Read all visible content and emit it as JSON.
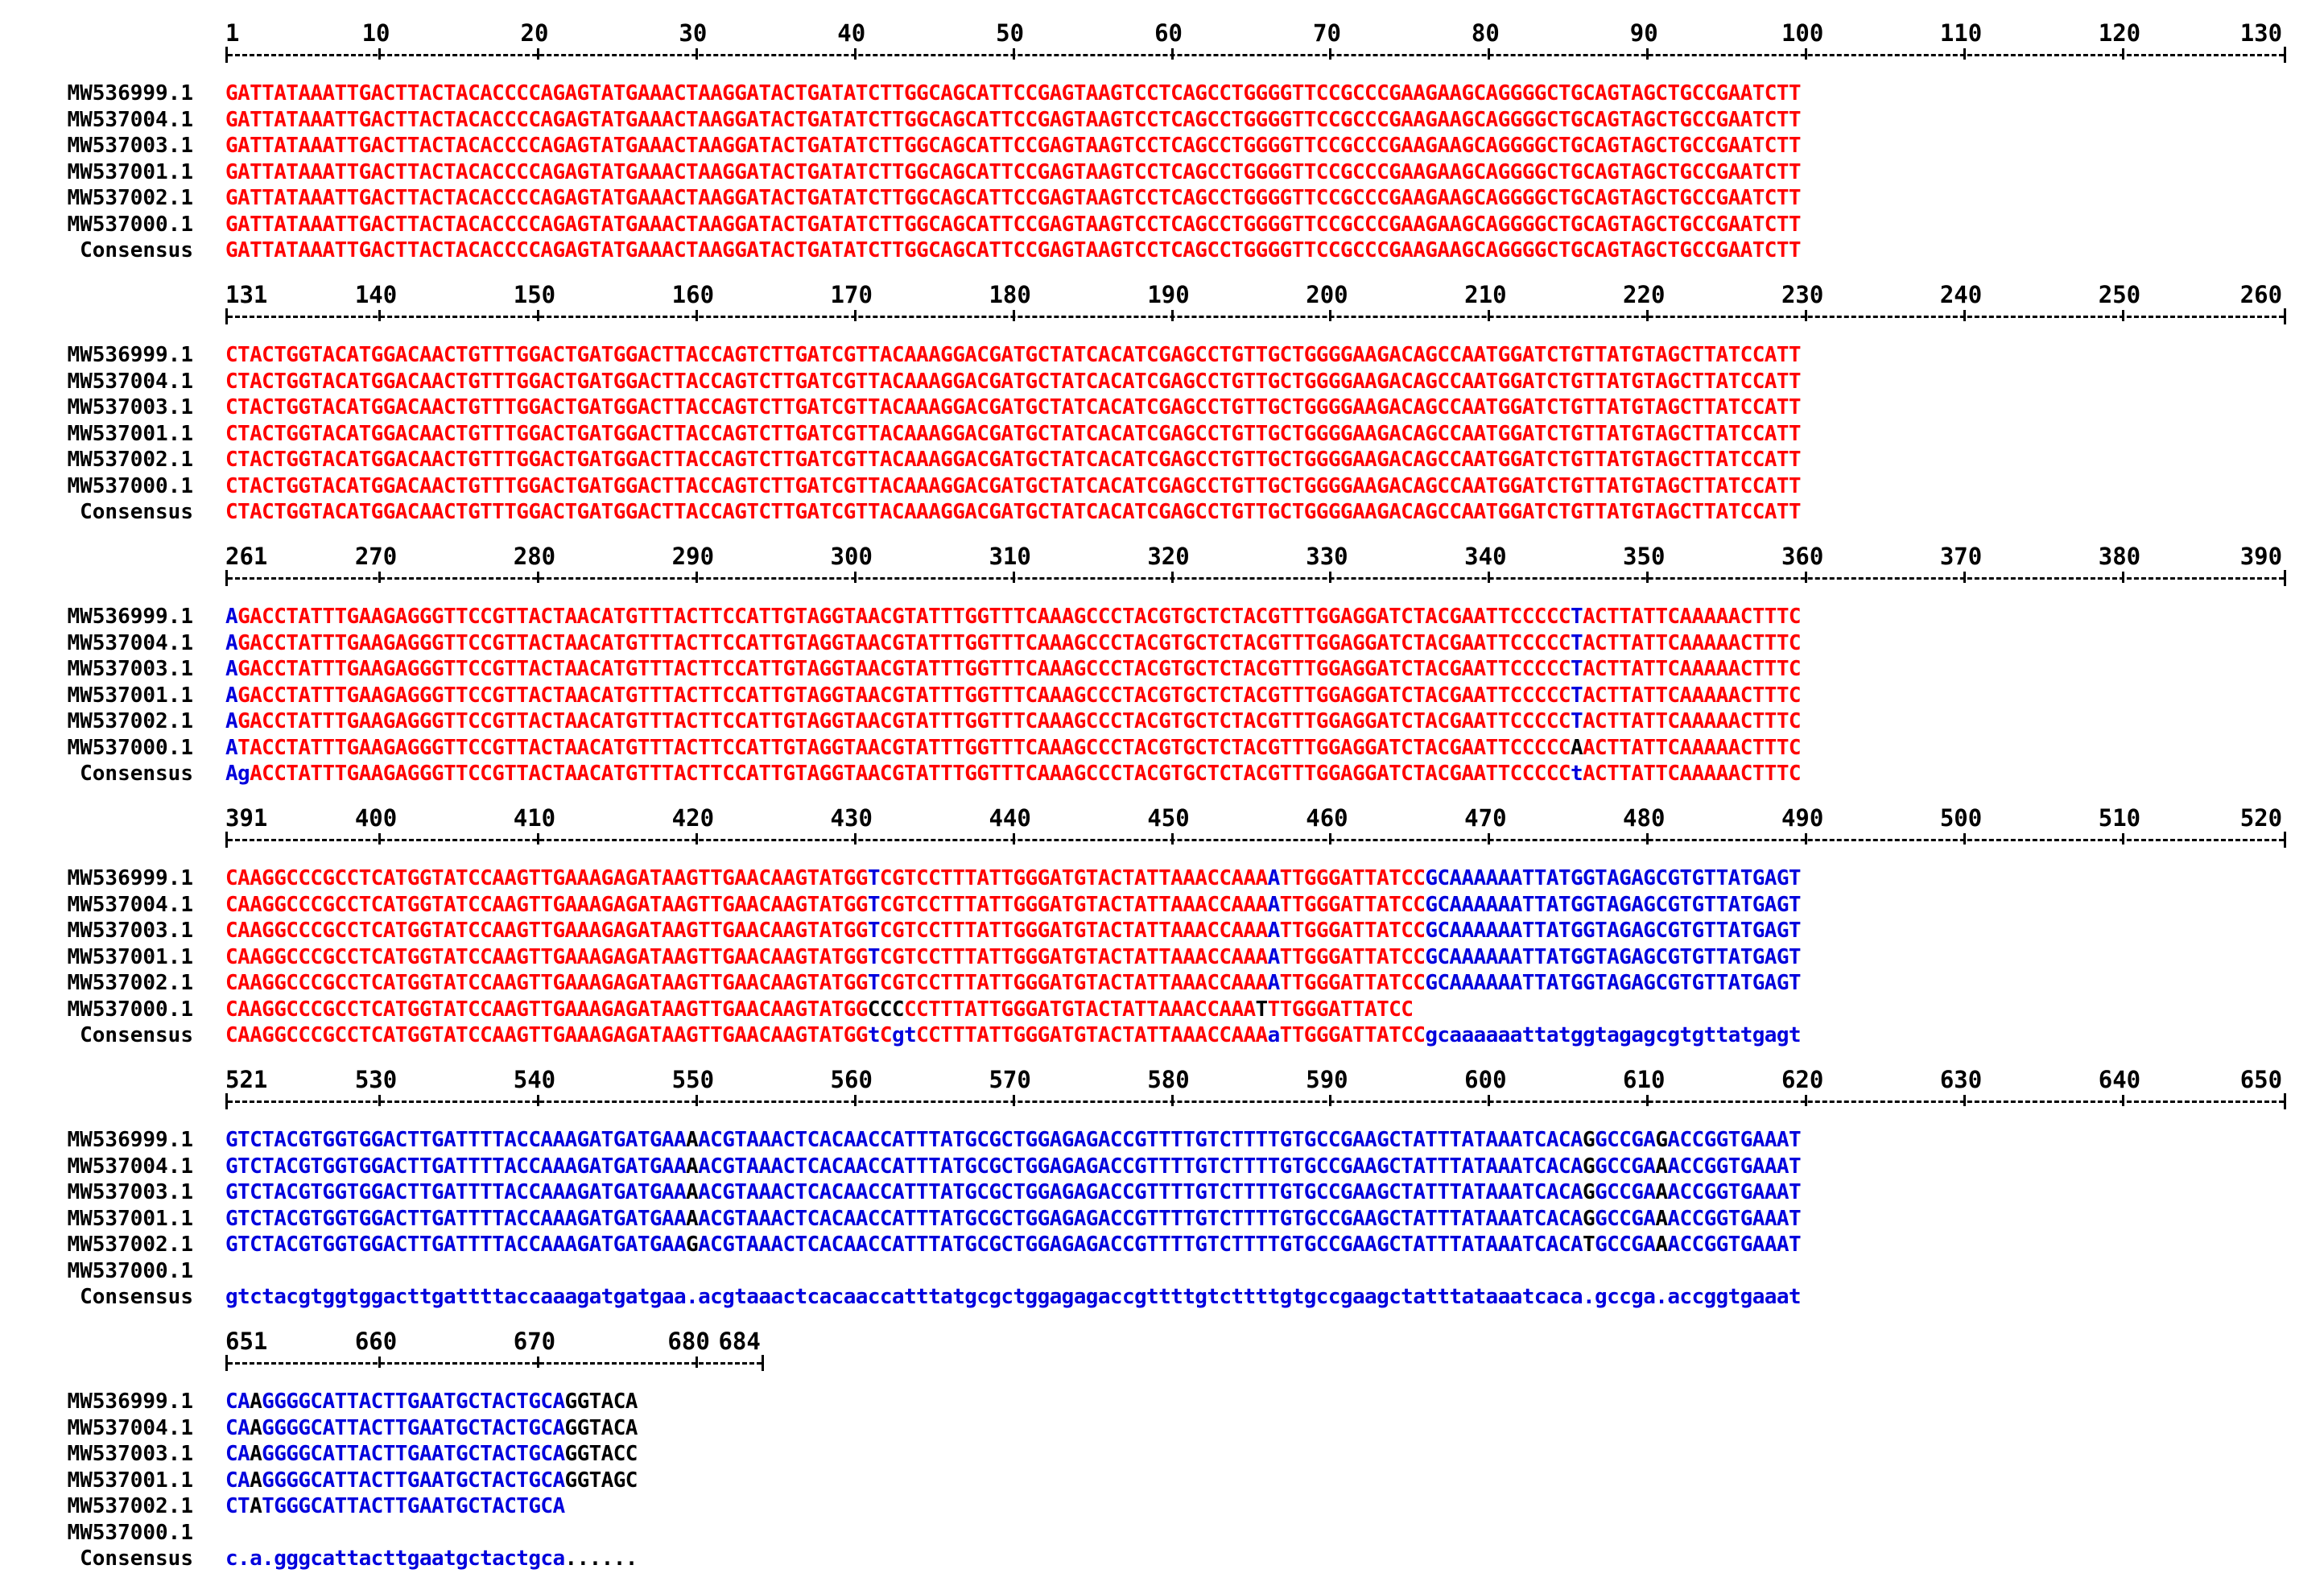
{
  "palette": {
    "high": "#ff0000",
    "low": "#0000dd",
    "neutral": "#000000"
  },
  "blocks": [
    {
      "start": 1,
      "end": 130,
      "ruler_labels": [
        "1",
        "10",
        "20",
        "30",
        "40",
        "50",
        "60",
        "70",
        "80",
        "90",
        "100",
        "110",
        "120",
        "130"
      ],
      "rows": [
        {
          "label": "MW536999.1",
          "segments": [
            [
              "r",
              "GATTATAAATTGACTTACTACACCCCAGAGTATGAAACTAAGGATACTGATATCTTGGCAGCATTCCGAGTAAGTCCTCAGCCTGGGGTTCCGCCCGAAGAAGCAGGGGCTGCAGTAGCTGCCGAATCTT"
            ]
          ]
        },
        {
          "label": "MW537004.1",
          "segments": [
            [
              "r",
              "GATTATAAATTGACTTACTACACCCCAGAGTATGAAACTAAGGATACTGATATCTTGGCAGCATTCCGAGTAAGTCCTCAGCCTGGGGTTCCGCCCGAAGAAGCAGGGGCTGCAGTAGCTGCCGAATCTT"
            ]
          ]
        },
        {
          "label": "MW537003.1",
          "segments": [
            [
              "r",
              "GATTATAAATTGACTTACTACACCCCAGAGTATGAAACTAAGGATACTGATATCTTGGCAGCATTCCGAGTAAGTCCTCAGCCTGGGGTTCCGCCCGAAGAAGCAGGGGCTGCAGTAGCTGCCGAATCTT"
            ]
          ]
        },
        {
          "label": "MW537001.1",
          "segments": [
            [
              "r",
              "GATTATAAATTGACTTACTACACCCCAGAGTATGAAACTAAGGATACTGATATCTTGGCAGCATTCCGAGTAAGTCCTCAGCCTGGGGTTCCGCCCGAAGAAGCAGGGGCTGCAGTAGCTGCCGAATCTT"
            ]
          ]
        },
        {
          "label": "MW537002.1",
          "segments": [
            [
              "r",
              "GATTATAAATTGACTTACTACACCCCAGAGTATGAAACTAAGGATACTGATATCTTGGCAGCATTCCGAGTAAGTCCTCAGCCTGGGGTTCCGCCCGAAGAAGCAGGGGCTGCAGTAGCTGCCGAATCTT"
            ]
          ]
        },
        {
          "label": "MW537000.1",
          "segments": [
            [
              "r",
              "GATTATAAATTGACTTACTACACCCCAGAGTATGAAACTAAGGATACTGATATCTTGGCAGCATTCCGAGTAAGTCCTCAGCCTGGGGTTCCGCCCGAAGAAGCAGGGGCTGCAGTAGCTGCCGAATCTT"
            ]
          ]
        },
        {
          "label": "Consensus",
          "segments": [
            [
              "r",
              "GATTATAAATTGACTTACTACACCCCAGAGTATGAAACTAAGGATACTGATATCTTGGCAGCATTCCGAGTAAGTCCTCAGCCTGGGGTTCCGCCCGAAGAAGCAGGGGCTGCAGTAGCTGCCGAATCTT"
            ]
          ]
        }
      ]
    },
    {
      "start": 131,
      "end": 260,
      "ruler_labels": [
        "131",
        "140",
        "150",
        "160",
        "170",
        "180",
        "190",
        "200",
        "210",
        "220",
        "230",
        "240",
        "250",
        "260"
      ],
      "rows": [
        {
          "label": "MW536999.1",
          "segments": [
            [
              "r",
              "CTACTGGTACATGGACAACTGTTTGGACTGATGGACTTACCAGTCTTGATCGTTACAAAGGACGATGCTATCACATCGAGCCTGTTGCTGGGGAAGACAGCCAATGGATCTGTTATGTAGCTTATCCATT"
            ]
          ]
        },
        {
          "label": "MW537004.1",
          "segments": [
            [
              "r",
              "CTACTGGTACATGGACAACTGTTTGGACTGATGGACTTACCAGTCTTGATCGTTACAAAGGACGATGCTATCACATCGAGCCTGTTGCTGGGGAAGACAGCCAATGGATCTGTTATGTAGCTTATCCATT"
            ]
          ]
        },
        {
          "label": "MW537003.1",
          "segments": [
            [
              "r",
              "CTACTGGTACATGGACAACTGTTTGGACTGATGGACTTACCAGTCTTGATCGTTACAAAGGACGATGCTATCACATCGAGCCTGTTGCTGGGGAAGACAGCCAATGGATCTGTTATGTAGCTTATCCATT"
            ]
          ]
        },
        {
          "label": "MW537001.1",
          "segments": [
            [
              "r",
              "CTACTGGTACATGGACAACTGTTTGGACTGATGGACTTACCAGTCTTGATCGTTACAAAGGACGATGCTATCACATCGAGCCTGTTGCTGGGGAAGACAGCCAATGGATCTGTTATGTAGCTTATCCATT"
            ]
          ]
        },
        {
          "label": "MW537002.1",
          "segments": [
            [
              "r",
              "CTACTGGTACATGGACAACTGTTTGGACTGATGGACTTACCAGTCTTGATCGTTACAAAGGACGATGCTATCACATCGAGCCTGTTGCTGGGGAAGACAGCCAATGGATCTGTTATGTAGCTTATCCATT"
            ]
          ]
        },
        {
          "label": "MW537000.1",
          "segments": [
            [
              "r",
              "CTACTGGTACATGGACAACTGTTTGGACTGATGGACTTACCAGTCTTGATCGTTACAAAGGACGATGCTATCACATCGAGCCTGTTGCTGGGGAAGACAGCCAATGGATCTGTTATGTAGCTTATCCATT"
            ]
          ]
        },
        {
          "label": "Consensus",
          "segments": [
            [
              "r",
              "CTACTGGTACATGGACAACTGTTTGGACTGATGGACTTACCAGTCTTGATCGTTACAAAGGACGATGCTATCACATCGAGCCTGTTGCTGGGGAAGACAGCCAATGGATCTGTTATGTAGCTTATCCATT"
            ]
          ]
        }
      ]
    },
    {
      "start": 261,
      "end": 390,
      "ruler_labels": [
        "261",
        "270",
        "280",
        "290",
        "300",
        "310",
        "320",
        "330",
        "340",
        "350",
        "360",
        "370",
        "380",
        "390"
      ],
      "rows": [
        {
          "label": "MW536999.1",
          "segments": [
            [
              "b",
              "A"
            ],
            [
              "r",
              "GACCTATTTGAAGAGGGTTCCGTTACTAACATGTTTACTTCCATTGTAGGTAACGTATTTGGTTTCAAAGCCCTACGTGCTCTACGTTTGGAGGATCTACGAATTCCCCC"
            ],
            [
              "b",
              "T"
            ],
            [
              "r",
              "ACTTATTCAAAAACTTTC"
            ]
          ]
        },
        {
          "label": "MW537004.1",
          "segments": [
            [
              "b",
              "A"
            ],
            [
              "r",
              "GACCTATTTGAAGAGGGTTCCGTTACTAACATGTTTACTTCCATTGTAGGTAACGTATTTGGTTTCAAAGCCCTACGTGCTCTACGTTTGGAGGATCTACGAATTCCCCC"
            ],
            [
              "b",
              "T"
            ],
            [
              "r",
              "ACTTATTCAAAAACTTTC"
            ]
          ]
        },
        {
          "label": "MW537003.1",
          "segments": [
            [
              "b",
              "A"
            ],
            [
              "r",
              "GACCTATTTGAAGAGGGTTCCGTTACTAACATGTTTACTTCCATTGTAGGTAACGTATTTGGTTTCAAAGCCCTACGTGCTCTACGTTTGGAGGATCTACGAATTCCCCC"
            ],
            [
              "b",
              "T"
            ],
            [
              "r",
              "ACTTATTCAAAAACTTTC"
            ]
          ]
        },
        {
          "label": "MW537001.1",
          "segments": [
            [
              "b",
              "A"
            ],
            [
              "r",
              "GACCTATTTGAAGAGGGTTCCGTTACTAACATGTTTACTTCCATTGTAGGTAACGTATTTGGTTTCAAAGCCCTACGTGCTCTACGTTTGGAGGATCTACGAATTCCCCC"
            ],
            [
              "b",
              "T"
            ],
            [
              "r",
              "ACTTATTCAAAAACTTTC"
            ]
          ]
        },
        {
          "label": "MW537002.1",
          "segments": [
            [
              "b",
              "A"
            ],
            [
              "r",
              "GACCTATTTGAAGAGGGTTCCGTTACTAACATGTTTACTTCCATTGTAGGTAACGTATTTGGTTTCAAAGCCCTACGTGCTCTACGTTTGGAGGATCTACGAATTCCCCC"
            ],
            [
              "b",
              "T"
            ],
            [
              "r",
              "ACTTATTCAAAAACTTTC"
            ]
          ]
        },
        {
          "label": "MW537000.1",
          "segments": [
            [
              "b",
              "A"
            ],
            [
              "r",
              "TACCTATTTGAAGAGGGTTCCGTTACTAACATGTTTACTTCCATTGTAGGTAACGTATTTGGTTTCAAAGCCCTACGTGCTCTACGTTTGGAGGATCTACGAATTCCCCC"
            ],
            [
              "k",
              "A"
            ],
            [
              "r",
              "ACTTATTCAAAAACTTTC"
            ]
          ]
        },
        {
          "label": "Consensus",
          "segments": [
            [
              "b",
              "Ag"
            ],
            [
              "r",
              "ACCTATTTGAAGAGGGTTCCGTTACTAACATGTTTACTTCCATTGTAGGTAACGTATTTGGTTTCAAAGCCCTACGTGCTCTACGTTTGGAGGATCTACGAATTCCCCC"
            ],
            [
              "b",
              "t"
            ],
            [
              "r",
              "ACTTATTCAAAAACTTTC"
            ]
          ]
        }
      ]
    },
    {
      "start": 391,
      "end": 520,
      "ruler_labels": [
        "391",
        "400",
        "410",
        "420",
        "430",
        "440",
        "450",
        "460",
        "470",
        "480",
        "490",
        "500",
        "510",
        "520"
      ],
      "rows": [
        {
          "label": "MW536999.1",
          "segments": [
            [
              "r",
              "CAAGGCCCGCCTCATGGTATCCAAGTTGAAAGAGATAAGTTGAACAAGTATGG"
            ],
            [
              "b",
              "T"
            ],
            [
              "r",
              "CGTCCTTTATTGGGATGTACTATTAAACCAAA"
            ],
            [
              "b",
              "A"
            ],
            [
              "r",
              "TTGGGATTATCC"
            ],
            [
              "b",
              "GCAAAAAATTATGGTAGAGCGTGTTATGAGT"
            ]
          ]
        },
        {
          "label": "MW537004.1",
          "segments": [
            [
              "r",
              "CAAGGCCCGCCTCATGGTATCCAAGTTGAAAGAGATAAGTTGAACAAGTATGG"
            ],
            [
              "b",
              "T"
            ],
            [
              "r",
              "CGTCCTTTATTGGGATGTACTATTAAACCAAA"
            ],
            [
              "b",
              "A"
            ],
            [
              "r",
              "TTGGGATTATCC"
            ],
            [
              "b",
              "GCAAAAAATTATGGTAGAGCGTGTTATGAGT"
            ]
          ]
        },
        {
          "label": "MW537003.1",
          "segments": [
            [
              "r",
              "CAAGGCCCGCCTCATGGTATCCAAGTTGAAAGAGATAAGTTGAACAAGTATGG"
            ],
            [
              "b",
              "T"
            ],
            [
              "r",
              "CGTCCTTTATTGGGATGTACTATTAAACCAAA"
            ],
            [
              "b",
              "A"
            ],
            [
              "r",
              "TTGGGATTATCC"
            ],
            [
              "b",
              "GCAAAAAATTATGGTAGAGCGTGTTATGAGT"
            ]
          ]
        },
        {
          "label": "MW537001.1",
          "segments": [
            [
              "r",
              "CAAGGCCCGCCTCATGGTATCCAAGTTGAAAGAGATAAGTTGAACAAGTATGG"
            ],
            [
              "b",
              "T"
            ],
            [
              "r",
              "CGTCCTTTATTGGGATGTACTATTAAACCAAA"
            ],
            [
              "b",
              "A"
            ],
            [
              "r",
              "TTGGGATTATCC"
            ],
            [
              "b",
              "GCAAAAAATTATGGTAGAGCGTGTTATGAGT"
            ]
          ]
        },
        {
          "label": "MW537002.1",
          "segments": [
            [
              "r",
              "CAAGGCCCGCCTCATGGTATCCAAGTTGAAAGAGATAAGTTGAACAAGTATGG"
            ],
            [
              "b",
              "T"
            ],
            [
              "r",
              "CGTCCTTTATTGGGATGTACTATTAAACCAAA"
            ],
            [
              "b",
              "A"
            ],
            [
              "r",
              "TTGGGATTATCC"
            ],
            [
              "b",
              "GCAAAAAATTATGGTAGAGCGTGTTATGAGT"
            ]
          ]
        },
        {
          "label": "MW537000.1",
          "segments": [
            [
              "r",
              "CAAGGCCCGCCTCATGGTATCCAAGTTGAAAGAGATAAGTTGAACAAGTATGG"
            ],
            [
              "k",
              "CCC"
            ],
            [
              "r",
              "CCTTTATTGGGATGTACTATTAAACCAAA"
            ],
            [
              "k",
              "T"
            ],
            [
              "r",
              "TTGGGATTATCC"
            ]
          ]
        },
        {
          "label": "Consensus",
          "segments": [
            [
              "r",
              "CAAGGCCCGCCTCATGGTATCCAAGTTGAAAGAGATAAGTTGAACAAGTATGG"
            ],
            [
              "b",
              "t"
            ],
            [
              "r",
              "C"
            ],
            [
              "b",
              "gt"
            ],
            [
              "r",
              "CCTTTATTGGGATGTACTATTAAACCAAA"
            ],
            [
              "b",
              "a"
            ],
            [
              "r",
              "TTGGGATTATCC"
            ],
            [
              "b",
              "gcaaaaaattatggtagagcgtgttatgagt"
            ]
          ]
        }
      ]
    },
    {
      "start": 521,
      "end": 650,
      "ruler_labels": [
        "521",
        "530",
        "540",
        "550",
        "560",
        "570",
        "580",
        "590",
        "600",
        "610",
        "620",
        "630",
        "640",
        "650"
      ],
      "rows": [
        {
          "label": "MW536999.1",
          "segments": [
            [
              "b",
              "GTCTACGTGGTGGACTTGATTTTACCAAAGATGATGAA"
            ],
            [
              "k",
              "A"
            ],
            [
              "b",
              "ACGTAAACTCACAACCATTTATGCGCTGGAGAGACCGTTTTGTCTTTTGTGCCGAAGCTATTTATAAATCACA"
            ],
            [
              "k",
              "G"
            ],
            [
              "b",
              "GCCGA"
            ],
            [
              "k",
              "G"
            ],
            [
              "b",
              "ACCGGTGAAAT"
            ]
          ]
        },
        {
          "label": "MW537004.1",
          "segments": [
            [
              "b",
              "GTCTACGTGGTGGACTTGATTTTACCAAAGATGATGAA"
            ],
            [
              "k",
              "A"
            ],
            [
              "b",
              "ACGTAAACTCACAACCATTTATGCGCTGGAGAGACCGTTTTGTCTTTTGTGCCGAAGCTATTTATAAATCACA"
            ],
            [
              "k",
              "G"
            ],
            [
              "b",
              "GCCGA"
            ],
            [
              "k",
              "A"
            ],
            [
              "b",
              "ACCGGTGAAAT"
            ]
          ]
        },
        {
          "label": "MW537003.1",
          "segments": [
            [
              "b",
              "GTCTACGTGGTGGACTTGATTTTACCAAAGATGATGAA"
            ],
            [
              "k",
              "A"
            ],
            [
              "b",
              "ACGTAAACTCACAACCATTTATGCGCTGGAGAGACCGTTTTGTCTTTTGTGCCGAAGCTATTTATAAATCACA"
            ],
            [
              "k",
              "G"
            ],
            [
              "b",
              "GCCGA"
            ],
            [
              "k",
              "A"
            ],
            [
              "b",
              "ACCGGTGAAAT"
            ]
          ]
        },
        {
          "label": "MW537001.1",
          "segments": [
            [
              "b",
              "GTCTACGTGGTGGACTTGATTTTACCAAAGATGATGAA"
            ],
            [
              "k",
              "A"
            ],
            [
              "b",
              "ACGTAAACTCACAACCATTTATGCGCTGGAGAGACCGTTTTGTCTTTTGTGCCGAAGCTATTTATAAATCACA"
            ],
            [
              "k",
              "G"
            ],
            [
              "b",
              "GCCGA"
            ],
            [
              "k",
              "A"
            ],
            [
              "b",
              "ACCGGTGAAAT"
            ]
          ]
        },
        {
          "label": "MW537002.1",
          "segments": [
            [
              "b",
              "GTCTACGTGGTGGACTTGATTTTACCAAAGATGATGAA"
            ],
            [
              "k",
              "G"
            ],
            [
              "b",
              "ACGTAAACTCACAACCATTTATGCGCTGGAGAGACCGTTTTGTCTTTTGTGCCGAAGCTATTTATAAATCACA"
            ],
            [
              "k",
              "T"
            ],
            [
              "b",
              "GCCGA"
            ],
            [
              "k",
              "A"
            ],
            [
              "b",
              "ACCGGTGAAAT"
            ]
          ]
        },
        {
          "label": "MW537000.1",
          "segments": []
        },
        {
          "label": "Consensus",
          "segments": [
            [
              "b",
              "gtctacgtggtggacttgattttaccaaagatgatgaa.acgtaaactcacaaccatttatgcgctggagagaccgttttgtcttttgtgccgaagctatttataaatcaca.gccga.accggtgaaat"
            ]
          ]
        }
      ]
    },
    {
      "start": 651,
      "end": 684,
      "ruler_labels": [
        "651",
        "660",
        "670",
        "680",
        "684"
      ],
      "rows": [
        {
          "label": "MW536999.1",
          "segments": [
            [
              "b",
              "CA"
            ],
            [
              "k",
              "A"
            ],
            [
              "b",
              "GGGGCATTACTTGAATGCTACTGCA"
            ],
            [
              "k",
              "GGTACA"
            ]
          ]
        },
        {
          "label": "MW537004.1",
          "segments": [
            [
              "b",
              "CA"
            ],
            [
              "k",
              "A"
            ],
            [
              "b",
              "GGGGCATTACTTGAATGCTACTGCA"
            ],
            [
              "k",
              "GGTACA"
            ]
          ]
        },
        {
          "label": "MW537003.1",
          "segments": [
            [
              "b",
              "CA"
            ],
            [
              "k",
              "A"
            ],
            [
              "b",
              "GGGGCATTACTTGAATGCTACTGCA"
            ],
            [
              "k",
              "GGTACC"
            ]
          ]
        },
        {
          "label": "MW537001.1",
          "segments": [
            [
              "b",
              "CA"
            ],
            [
              "k",
              "A"
            ],
            [
              "b",
              "GGGGCATTACTTGAATGCTACTGCA"
            ],
            [
              "k",
              "GGTAGC"
            ]
          ]
        },
        {
          "label": "MW537002.1",
          "segments": [
            [
              "b",
              "CT"
            ],
            [
              "k",
              "A"
            ],
            [
              "b",
              "TGGGCATTACTTGAATGCTACTGCA"
            ]
          ]
        },
        {
          "label": "MW537000.1",
          "segments": []
        },
        {
          "label": "Consensus",
          "segments": [
            [
              "b",
              "c.a.gggcattacttgaatgctactgca"
            ],
            [
              "k",
              "......"
            ]
          ]
        }
      ]
    }
  ]
}
